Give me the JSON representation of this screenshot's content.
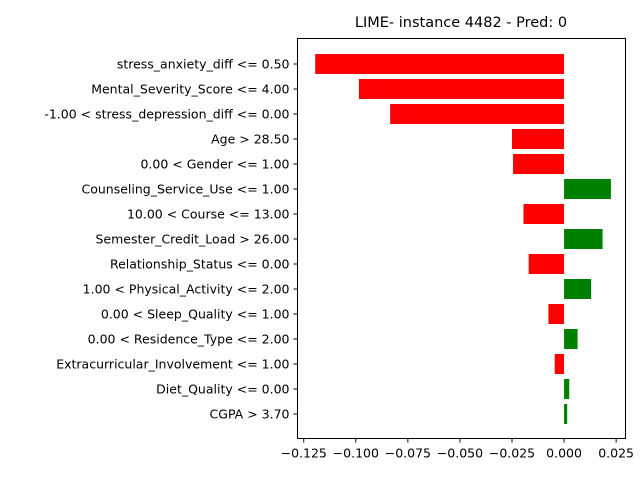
{
  "chart_data": {
    "type": "bar",
    "orientation": "horizontal",
    "title": "LIME- instance 4482 - Pred: 0",
    "xlabel": "",
    "ylabel": "",
    "xlim": [
      -0.128,
      0.0295
    ],
    "xticks": [
      -0.125,
      -0.1,
      -0.075,
      -0.05,
      -0.025,
      0.0,
      0.025
    ],
    "xtick_labels": [
      "−0.125",
      "−0.100",
      "−0.075",
      "−0.050",
      "−0.025",
      "0.000",
      "0.025"
    ],
    "grid": false,
    "colors": {
      "negative": "#ff0000",
      "positive": "#008000"
    },
    "categories": [
      "stress_anxiety_diff <= 0.50",
      "Mental_Severity_Score <= 4.00",
      "-1.00 < stress_depression_diff <= 0.00",
      "Age > 28.50",
      "0.00 < Gender <= 1.00",
      "Counseling_Service_Use <= 1.00",
      "10.00 < Course <= 13.00",
      "Semester_Credit_Load > 26.00",
      "Relationship_Status <= 0.00",
      "1.00 < Physical_Activity <= 2.00",
      "0.00 < Sleep_Quality <= 1.00",
      "0.00 < Residence_Type <= 2.00",
      "Extracurricular_Involvement <= 1.00",
      "Diet_Quality <= 0.00",
      "CGPA > 3.70"
    ],
    "values": [
      -0.1195,
      -0.0985,
      -0.0835,
      -0.025,
      -0.0245,
      0.0225,
      -0.0195,
      0.0185,
      -0.017,
      0.013,
      -0.0075,
      0.0065,
      -0.0045,
      0.0025,
      0.0015
    ]
  }
}
